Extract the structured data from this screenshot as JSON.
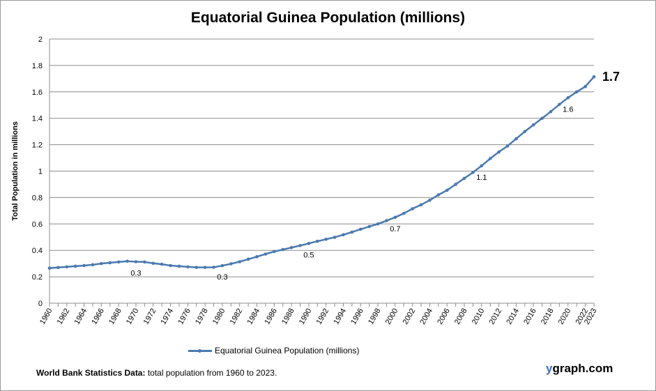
{
  "chart_data": {
    "type": "line",
    "title": "Equatorial Guinea Population (millions)",
    "ylabel": "Total Population  in millions",
    "xlabel": "",
    "ylim": [
      0,
      2
    ],
    "yticks": [
      "0",
      "0.2",
      "0.4",
      "0.6",
      "0.8",
      "1",
      "1.2",
      "1.4",
      "1.6",
      "1.8",
      "2"
    ],
    "xtick_labels": [
      "1960",
      "1962",
      "1964",
      "1966",
      "1968",
      "1970",
      "1972",
      "1974",
      "1976",
      "1978",
      "1980",
      "1982",
      "1984",
      "1986",
      "1988",
      "1990",
      "1992",
      "1994",
      "1996",
      "1998",
      "2000",
      "2002",
      "2004",
      "2006",
      "2008",
      "2010",
      "2012",
      "2014",
      "2016",
      "2018",
      "2020",
      "2022",
      "2023"
    ],
    "grid": "horizontal",
    "legend_position": "bottom",
    "series": [
      {
        "name": "Equatorial Guinea Population (millions)",
        "color": "#4a79b0",
        "x": [
          1960,
          1961,
          1962,
          1963,
          1964,
          1965,
          1966,
          1967,
          1968,
          1969,
          1970,
          1971,
          1972,
          1973,
          1974,
          1975,
          1976,
          1977,
          1978,
          1979,
          1980,
          1981,
          1982,
          1983,
          1984,
          1985,
          1986,
          1987,
          1988,
          1989,
          1990,
          1991,
          1992,
          1993,
          1994,
          1995,
          1996,
          1997,
          1998,
          1999,
          2000,
          2001,
          2002,
          2003,
          2004,
          2005,
          2006,
          2007,
          2008,
          2009,
          2010,
          2011,
          2012,
          2013,
          2014,
          2015,
          2016,
          2017,
          2018,
          2019,
          2020,
          2021,
          2022,
          2023
        ],
        "values": [
          0.265,
          0.27,
          0.275,
          0.28,
          0.285,
          0.291,
          0.3,
          0.306,
          0.312,
          0.318,
          0.314,
          0.312,
          0.302,
          0.295,
          0.285,
          0.28,
          0.275,
          0.271,
          0.271,
          0.272,
          0.284,
          0.298,
          0.314,
          0.333,
          0.352,
          0.372,
          0.391,
          0.406,
          0.421,
          0.436,
          0.452,
          0.469,
          0.484,
          0.499,
          0.518,
          0.538,
          0.56,
          0.58,
          0.6,
          0.625,
          0.65,
          0.68,
          0.715,
          0.745,
          0.78,
          0.82,
          0.855,
          0.9,
          0.945,
          0.99,
          1.04,
          1.095,
          1.145,
          1.19,
          1.245,
          1.3,
          1.35,
          1.4,
          1.45,
          1.505,
          1.555,
          1.6,
          1.64,
          1.714
        ]
      }
    ],
    "annotations": [
      {
        "x": 1970,
        "text": "0.3"
      },
      {
        "x": 1980,
        "text": "0.3"
      },
      {
        "x": 1990,
        "text": "0.5"
      },
      {
        "x": 2000,
        "text": "0.7"
      },
      {
        "x": 2010,
        "text": "1.1"
      },
      {
        "x": 2020,
        "text": "1.6"
      }
    ],
    "last_value_label": "1.7"
  },
  "legend": {
    "label": "Equatorial Guinea Population (millions)"
  },
  "footer": {
    "bold": "World Bank Statistics Data:",
    "text": " total population from 1960 to 2023."
  },
  "brand": {
    "y": "y",
    "rest": "graph.com"
  }
}
